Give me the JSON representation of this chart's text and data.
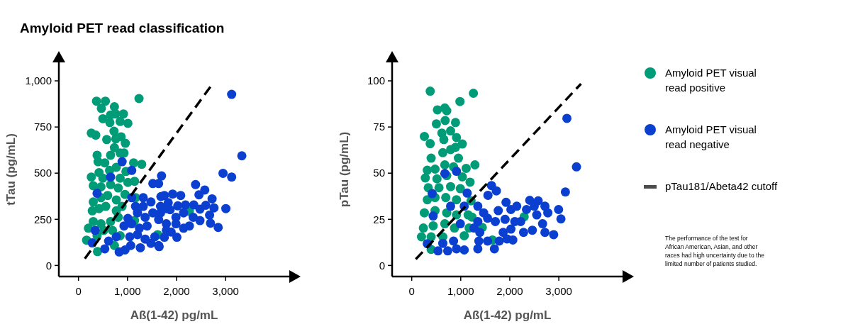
{
  "chart_data": [
    {
      "type": "scatter",
      "title": "Amyloid PET read classification",
      "xlabel": "Aß(1-42) pg/mL",
      "ylabel": "tTau (pg/mL)",
      "xlim": [
        -400,
        4300
      ],
      "ylim": [
        -60,
        1100
      ],
      "xticks": [
        0,
        {
          "value": 1000,
          "label": "1,000"
        },
        {
          "value": 2000,
          "label": "2,000"
        },
        {
          "value": 3000,
          "label": "3,000"
        }
      ],
      "yticks": [
        0,
        250,
        500,
        750,
        {
          "value": 1000,
          "label": "1,000"
        }
      ],
      "grid": false,
      "series": [
        {
          "color": "#009b77",
          "marker": "circle",
          "x": [
            368,
            549,
            467,
            733,
            498,
            655,
            761,
            917,
            641,
            850,
            1008,
            1235,
            262,
            353,
            576,
            725,
            761,
            870,
            956,
            733,
            850,
            380,
            400,
            655,
            929,
            1125,
            1290,
            537,
            772,
            968,
            262,
            420,
            498,
            635,
            850,
            1144,
            302,
            459,
            655,
            811,
            1008,
            302,
            459,
            596,
            772,
            949,
            1164,
            282,
            420,
            556,
            772,
            890,
            203,
            302,
            459,
            655,
            811,
            165,
            380,
            517,
            694,
            850,
            388,
            733,
            1615,
            1144,
            2262
          ],
          "values": [
            890,
            890,
            851,
            860,
            795,
            815,
            821,
            821,
            774,
            780,
            770,
            904,
            717,
            706,
            682,
            727,
            686,
            697,
            662,
            638,
            609,
            597,
            562,
            597,
            609,
            556,
            548,
            556,
            532,
            509,
            479,
            503,
            473,
            515,
            473,
            456,
            432,
            426,
            438,
            420,
            450,
            344,
            367,
            379,
            355,
            385,
            367,
            296,
            308,
            320,
            296,
            320,
            202,
            238,
            226,
            238,
            261,
            137,
            161,
            190,
            190,
            161,
            75,
            108,
            167,
            243,
            293
          ]
        },
        {
          "color": "#0a3fcf",
          "marker": "circle",
          "x": [
            282,
            537,
            831,
            949,
            1066,
            1262,
            1478,
            1635,
            615,
            772,
            1047,
            1203,
            1360,
            929,
            1086,
            1243,
            1400,
            1556,
            1008,
            1203,
            1360,
            1164,
            1321,
            1517,
            1086,
            1321,
            1478,
            1674,
            1752,
            1517,
            1635,
            1694,
            1086,
            890,
            655,
            380,
            341,
            1792,
            1792,
            3124,
            3332,
            2948,
            3124,
            3006,
            2850,
            2693,
            2674,
            2764,
            2725,
            2576,
            2388,
            2458,
            2596,
            2478,
            2352,
            2478,
            2262,
            2144,
            2007,
            1890,
            1752,
            1646,
            2085,
            1921,
            1682,
            2026,
            2183,
            1831,
            1674,
            1870,
            1988,
            2144,
            2340,
            1635,
            1792,
            1988
          ],
          "values": [
            122,
            90,
            73,
            84,
            108,
            96,
            120,
            108,
            132,
            155,
            155,
            167,
            143,
            214,
            226,
            202,
            214,
            155,
            255,
            285,
            261,
            320,
            320,
            285,
            367,
            367,
            344,
            320,
            379,
            444,
            444,
            485,
            515,
            562,
            479,
            391,
            190,
            308,
            190,
            927,
            594,
            499,
            479,
            308,
            206,
            229,
            273,
            312,
            361,
            409,
            438,
            383,
            326,
            305,
            328,
            243,
            214,
            202,
            153,
            181,
            153,
            102,
            379,
            387,
            373,
            323,
            328,
            340,
            285,
            302,
            261,
            285,
            261,
            249,
            226,
            226
          ]
        },
        {
          "type": "line",
          "line_style": "dashed",
          "color": "#000000",
          "x": [
            130,
            2730
          ],
          "values": [
            37,
            982
          ]
        }
      ]
    },
    {
      "type": "scatter",
      "xlabel": "Aß(1-42) pg/mL",
      "ylabel": "pTau (pg/mL)",
      "xlim": [
        -400,
        4300
      ],
      "ylim": [
        -6,
        110
      ],
      "xticks": [
        0,
        {
          "value": 1000,
          "label": "1,000"
        },
        {
          "value": 2000,
          "label": "2,000"
        },
        {
          "value": 3000,
          "label": "3,000"
        }
      ],
      "yticks": [
        0,
        25,
        50,
        75,
        100
      ],
      "grid": false,
      "legend": "right",
      "annotations": [
        "The performance of the test for African American, Asian, and other races had high uncertainty due to the limited number of patients studied."
      ],
      "series": [
        {
          "name": "Amyloid PET visual read positive",
          "color": "#009b77",
          "marker": "circle",
          "x": [
            377,
            1258,
            984,
            524,
            675,
            714,
            682,
            503,
            893,
            258,
            615,
            655,
            793,
            913,
            377,
            1032,
            396,
            634,
            793,
            893,
            952,
            1289,
            1110,
            318,
            476,
            675,
            853,
            277,
            515,
            714,
            1032,
            1190,
            337,
            556,
            793,
            991,
            1210,
            318,
            476,
            694,
            913,
            258,
            476,
            714,
            913,
            1151,
            1229,
            238,
            437,
            675,
            872,
            1170,
            199,
            396,
            634,
            1071,
            396,
            2293,
            1440,
            1646
          ],
          "values": [
            94.4,
            93.3,
            88.8,
            84.3,
            85.3,
            83.8,
            78.5,
            76.7,
            77.4,
            69.9,
            71.7,
            68.2,
            72.9,
            69.3,
            66.0,
            65.8,
            58.1,
            61.1,
            62.8,
            64.0,
            58.1,
            54.5,
            52.6,
            51.6,
            52.2,
            54.5,
            53.4,
            47.4,
            46.9,
            48.7,
            48.0,
            45.1,
            42.1,
            42.1,
            42.7,
            41.6,
            35.0,
            35.6,
            36.8,
            36.8,
            35.6,
            28.5,
            29.7,
            28.5,
            27.4,
            27.4,
            26.2,
            20.3,
            21.5,
            22.6,
            20.3,
            20.3,
            15.5,
            15.5,
            15.5,
            16.1,
            8.7,
            26.4,
            20.6,
            13.8
          ]
        },
        {
          "name": "Amyloid PET visual read negative",
          "color": "#0a3fcf",
          "marker": "circle",
          "x": [
            318,
            536,
            734,
            913,
            1071,
            634,
            853,
            417,
            675,
            913,
            1131,
            437,
            793,
            1071,
            1348,
            991,
            1270,
            1348,
            1369,
            1348,
            3165,
            3360,
            3134,
            2995,
            3043,
            2895,
            2717,
            2669,
            2776,
            2717,
            2579,
            2407,
            2499,
            2550,
            2460,
            2281,
            2142,
            2023,
            1924,
            2341,
            2222,
            2023,
            1943,
            2062,
            1865,
            1904,
            1765,
            1726,
            1627,
            1555,
            1686,
            1785,
            1547,
            1705,
            1547,
            1389,
            1467,
            2103
          ],
          "values": [
            11.8,
            7.9,
            7.9,
            9.0,
            8.4,
            12.0,
            13.2,
            38.9,
            49.8,
            51.0,
            39.2,
            26.8,
            32.1,
            32.1,
            32.1,
            22.6,
            20.3,
            9.0,
            13.2,
            23.8,
            79.7,
            53.4,
            39.8,
            30.3,
            25.2,
            16.7,
            17.9,
            22.6,
            28.5,
            32.1,
            35.0,
            35.3,
            32.1,
            27.4,
            19.1,
            17.9,
            32.1,
            30.3,
            34.2,
            30.3,
            23.8,
            19.7,
            14.4,
            13.8,
            17.9,
            25.0,
            29.7,
            40.4,
            43.3,
            38.0,
            9.0,
            13.2,
            13.2,
            23.8,
            25.6,
            17.9,
            28.5,
            23.8
          ]
        },
        {
          "name": "pTau181/Abeta42 cutoff",
          "type": "line",
          "line_style": "dashed",
          "color": "#000000",
          "x": [
            83,
            3452
          ],
          "values": [
            3.4,
            98.4
          ]
        }
      ]
    }
  ]
}
